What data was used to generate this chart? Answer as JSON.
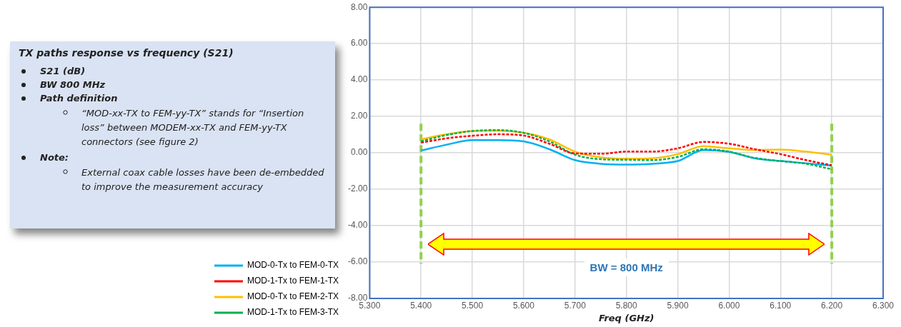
{
  "chart_data": {
    "type": "line",
    "title": "TX paths response vs frequency (S21)",
    "xlabel": "Freq (GHz)",
    "annotations": [
      "S21 (dB)",
      "BW 800 MHz",
      "Path definition",
      "“MOD-xx-TX to FEM-yy-TX” stands for “Insertion loss” between MODEM-xx-TX and FEM-yy-TX connectors (see figure 2)",
      "Note:",
      "External coax cable losses have been de-embedded to improve the measurement accuracy",
      "BW = 800 MHz"
    ],
    "x": [
      5.4,
      5.45,
      5.5,
      5.55,
      5.6,
      5.65,
      5.7,
      5.75,
      5.8,
      5.85,
      5.9,
      5.95,
      6.0,
      6.05,
      6.1,
      6.15,
      6.2
    ],
    "series": [
      {
        "name": "MOD-0-Tx to FEM-0-TX",
        "color": "#00b0f0",
        "line_style": "solid",
        "values": [
          0.13,
          0.45,
          0.7,
          0.7,
          0.63,
          0.2,
          -0.4,
          -0.6,
          -0.64,
          -0.6,
          -0.45,
          0.15,
          0.05,
          -0.3,
          -0.45,
          -0.57,
          -0.7
        ]
      },
      {
        "name": "MOD-1-Tx to FEM-1-TX",
        "color": "#ff0000",
        "line_style": "dashed",
        "values": [
          0.56,
          0.8,
          0.94,
          1.02,
          0.95,
          0.5,
          -0.03,
          -0.05,
          0.07,
          0.07,
          0.25,
          0.6,
          0.5,
          0.2,
          -0.07,
          -0.4,
          -0.68
        ]
      },
      {
        "name": "MOD-0-Tx to FEM-2-TX",
        "color": "#ffc000",
        "line_style": "solid",
        "values": [
          0.74,
          1.02,
          1.2,
          1.22,
          1.1,
          0.74,
          0.07,
          -0.25,
          -0.32,
          -0.3,
          -0.07,
          0.37,
          0.25,
          0.16,
          0.18,
          0.07,
          -0.11
        ]
      },
      {
        "name": "MOD-1-Tx to FEM-3-TX",
        "color": "#00b050",
        "line_style": "dashed",
        "values": [
          0.63,
          0.98,
          1.2,
          1.25,
          1.1,
          0.63,
          -0.1,
          -0.35,
          -0.38,
          -0.4,
          -0.22,
          0.2,
          0.07,
          -0.28,
          -0.45,
          -0.6,
          -0.9
        ]
      }
    ],
    "xlim": [
      5.3,
      6.3
    ],
    "xticks": [
      {
        "value": 5.3,
        "label": "5.300"
      },
      {
        "value": 5.4,
        "label": "5.400"
      },
      {
        "value": 5.5,
        "label": "5.500"
      },
      {
        "value": 5.6,
        "label": "5.600"
      },
      {
        "value": 5.7,
        "label": "5.700"
      },
      {
        "value": 5.8,
        "label": "5.800"
      },
      {
        "value": 5.9,
        "label": "5.900"
      },
      {
        "value": 6.0,
        "label": "6.000"
      },
      {
        "value": 6.1,
        "label": "6.100"
      },
      {
        "value": 6.2,
        "label": "6.200"
      },
      {
        "value": 6.3,
        "label": "6.300"
      }
    ],
    "ylim": [
      -8,
      8
    ],
    "yticks": [
      {
        "value": -8,
        "label": "-8.00"
      },
      {
        "value": -6,
        "label": "-6.00"
      },
      {
        "value": -4,
        "label": "-4.00"
      },
      {
        "value": -2,
        "label": "-2.00"
      },
      {
        "value": 0,
        "label": "0.00"
      },
      {
        "value": 2,
        "label": "2.00"
      },
      {
        "value": 4,
        "label": "4.00"
      },
      {
        "value": 6,
        "label": "6.00"
      },
      {
        "value": 8,
        "label": "8.00"
      }
    ],
    "ref_lines": [
      {
        "axis": "x",
        "value": 5.4,
        "color": "#92d050",
        "line_style": "dashed"
      },
      {
        "axis": "x",
        "value": 6.2,
        "color": "#92d050",
        "line_style": "dashed"
      }
    ],
    "grid": true,
    "legend": "bottom left",
    "marker": "none"
  }
}
